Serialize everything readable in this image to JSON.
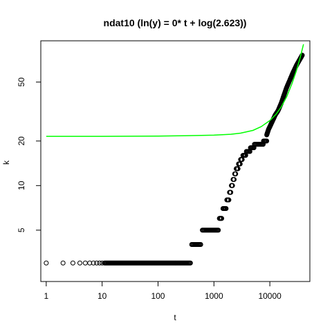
{
  "chart_data": {
    "type": "scatter",
    "title": "ndat10 (ln(y) = 0* t + log(2.623))",
    "xlabel": "t",
    "ylabel": "k",
    "x_scale": "log",
    "y_scale": "log",
    "xlim": [
      0.8,
      52000
    ],
    "ylim": [
      2.25,
      95
    ],
    "x_ticks": [
      1,
      10,
      100,
      1000,
      10000
    ],
    "x_tick_labels": [
      "1",
      "10",
      "100",
      "1000",
      "10000"
    ],
    "y_ticks": [
      5,
      10,
      20,
      50
    ],
    "y_tick_labels": [
      "5",
      "10",
      "20",
      "50"
    ],
    "grid": false,
    "legend": "none",
    "colors": {
      "points": "#000000",
      "fit_line": "#00ff00"
    },
    "series": [
      {
        "kind": "points",
        "segments": [
          {
            "x_from": 1,
            "x_to": 380,
            "y": 3
          },
          {
            "x_from": 400,
            "x_to": 580,
            "y": 4
          },
          {
            "x_from": 620,
            "x_to": 1200,
            "y": 5
          },
          {
            "x_from": 1250,
            "x_to": 1380,
            "y": 6
          },
          {
            "x_from": 1450,
            "x_to": 1650,
            "y": 7
          },
          {
            "x_from": 1700,
            "x_to": 1850,
            "y": 8
          },
          {
            "x_from": 1900,
            "x_to": 2000,
            "y": 9
          },
          {
            "x_from": 2050,
            "x_to": 2150,
            "y": 10
          },
          {
            "x_from": 2200,
            "x_to": 2300,
            "y": 11
          },
          {
            "x_from": 2350,
            "x_to": 2450,
            "y": 12
          },
          {
            "x_from": 2500,
            "x_to": 2700,
            "y": 13
          },
          {
            "x_from": 2750,
            "x_to": 2950,
            "y": 14
          },
          {
            "x_from": 3000,
            "x_to": 3200,
            "y": 15
          },
          {
            "x_from": 3300,
            "x_to": 3700,
            "y": 16
          },
          {
            "x_from": 3800,
            "x_to": 4400,
            "y": 17
          },
          {
            "x_from": 4500,
            "x_to": 5200,
            "y": 18
          },
          {
            "x_from": 5300,
            "x_to": 7600,
            "y": 19
          },
          {
            "x_from": 7700,
            "x_to": 8800,
            "y": 20
          }
        ],
        "ramp": {
          "x": [
            8800,
            9500,
            10500,
            11500,
            12500,
            14000,
            16000,
            18000,
            20000,
            23000,
            26000,
            30000,
            35000,
            38000
          ],
          "y": [
            22,
            24,
            26,
            28,
            30,
            32,
            36,
            41,
            46,
            52,
            58,
            65,
            72,
            76
          ]
        }
      },
      {
        "kind": "line",
        "x": [
          1,
          10,
          100,
          300,
          1000,
          2000,
          3000,
          5000,
          7000,
          10000,
          13000,
          16000,
          20000,
          25000,
          30000,
          35000,
          40000
        ],
        "y": [
          21.5,
          21.5,
          21.6,
          21.7,
          21.9,
          22.2,
          22.6,
          23.6,
          25.0,
          27.5,
          30.4,
          34.0,
          39.8,
          49.0,
          60.0,
          73.5,
          90.0
        ]
      }
    ]
  }
}
